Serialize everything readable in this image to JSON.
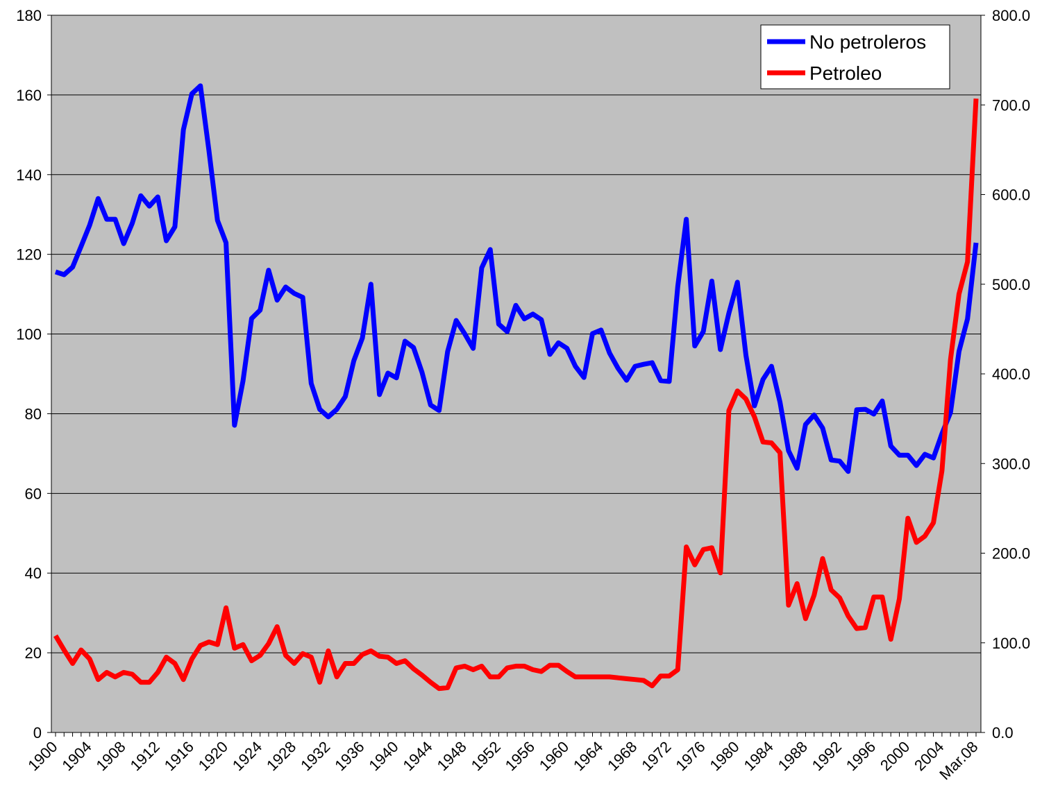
{
  "chart_data": {
    "type": "line",
    "categories": [
      "1900",
      null,
      null,
      null,
      "1904",
      null,
      null,
      null,
      "1908",
      null,
      null,
      null,
      "1912",
      null,
      null,
      null,
      "1916",
      null,
      null,
      null,
      "1920",
      null,
      null,
      null,
      "1924",
      null,
      null,
      null,
      "1928",
      null,
      null,
      null,
      "1932",
      null,
      null,
      null,
      "1936",
      null,
      null,
      null,
      "1940",
      null,
      null,
      null,
      "1944",
      null,
      null,
      null,
      "1948",
      null,
      null,
      null,
      "1952",
      null,
      null,
      null,
      "1956",
      null,
      null,
      null,
      "1960",
      null,
      null,
      null,
      "1964",
      null,
      null,
      null,
      "1968",
      null,
      null,
      null,
      "1972",
      null,
      null,
      null,
      "1976",
      null,
      null,
      null,
      "1980",
      null,
      null,
      null,
      "1984",
      null,
      null,
      null,
      "1988",
      null,
      null,
      null,
      "1992",
      null,
      null,
      null,
      "1996",
      null,
      null,
      null,
      "2000",
      null,
      null,
      null,
      "2004",
      null,
      null,
      null,
      "Mar.08"
    ],
    "series": [
      {
        "name": "No petroleros",
        "color": "#0000ff",
        "axis": "y",
        "values": [
          115.6,
          114.9,
          116.8,
          122,
          127.3,
          134,
          128.8,
          128.8,
          122.7,
          127.8,
          134.7,
          132.1,
          134.4,
          123.4,
          126.9,
          151.3,
          160.3,
          162.3,
          146,
          128.5,
          122.9,
          77.1,
          88.3,
          103.9,
          106,
          116,
          108.5,
          111.8,
          110.2,
          109.2,
          87.6,
          81.1,
          79.2,
          81.1,
          84.3,
          93.3,
          99,
          112.5,
          84.8,
          90.2,
          89,
          98.2,
          96.6,
          90.4,
          82.2,
          80.8,
          95.6,
          103.4,
          100.1,
          96.4,
          116.6,
          121.2,
          102.5,
          100.6,
          107.2,
          103.8,
          105,
          103.6,
          94.9,
          97.8,
          96.4,
          91.9,
          89.1,
          100.1,
          101,
          95.2,
          91.4,
          88.4,
          91.9,
          92.4,
          92.8,
          88.3,
          88.1,
          111.9,
          128.8,
          97,
          100.6,
          113.3,
          96.1,
          105.2,
          113,
          94.7,
          82,
          88.6,
          91.9,
          82.9,
          70.7,
          66.3,
          77.3,
          79.7,
          76.4,
          68.4,
          68.1,
          65.5,
          81,
          81.1,
          79.9,
          83.2,
          71.9,
          69.6,
          69.6,
          67,
          69.8,
          68.9,
          75,
          80.3,
          95.6,
          103.8,
          122.9
        ]
      },
      {
        "name": "Petroleo",
        "color": "#ff0000",
        "axis": "y2",
        "values": [
          108,
          92,
          77,
          92,
          82,
          59,
          67,
          62,
          67,
          65,
          56,
          56,
          67,
          84,
          77,
          59,
          82,
          97,
          101,
          98,
          139,
          94,
          98,
          80,
          86,
          99,
          118,
          86,
          77,
          88,
          84,
          56,
          91,
          62,
          77,
          77,
          87,
          91,
          85,
          84,
          77,
          80,
          71,
          64,
          56,
          49,
          50,
          72,
          74,
          70,
          74,
          62,
          62,
          72,
          74,
          74,
          70,
          68,
          75,
          75,
          68,
          62,
          62,
          62,
          62,
          62,
          61,
          60,
          59,
          58,
          52,
          63,
          63,
          70,
          207,
          187,
          204,
          206,
          178,
          359,
          381,
          372,
          352,
          324,
          323,
          312,
          142,
          166,
          127,
          153,
          194,
          159,
          150,
          130,
          116,
          117,
          151,
          151,
          104,
          149,
          239,
          212,
          219,
          234,
          292,
          416,
          489,
          525,
          707
        ]
      }
    ],
    "ylim": [
      0,
      180
    ],
    "yticks": [
      0,
      20,
      40,
      60,
      80,
      100,
      120,
      140,
      160,
      180
    ],
    "y2lim": [
      0,
      800
    ],
    "y2ticks": [
      {
        "value": 0,
        "label": "0.0"
      },
      {
        "value": 100,
        "label": "100.0"
      },
      {
        "value": 200,
        "label": "200.0"
      },
      {
        "value": 300,
        "label": "300.0"
      },
      {
        "value": 400,
        "label": "400.0"
      },
      {
        "value": 500,
        "label": "500.0"
      },
      {
        "value": 600,
        "label": "600.0"
      },
      {
        "value": 700,
        "label": "700.0"
      },
      {
        "value": 800,
        "label": "800.0"
      }
    ],
    "grid": true,
    "legend": "top-right"
  }
}
